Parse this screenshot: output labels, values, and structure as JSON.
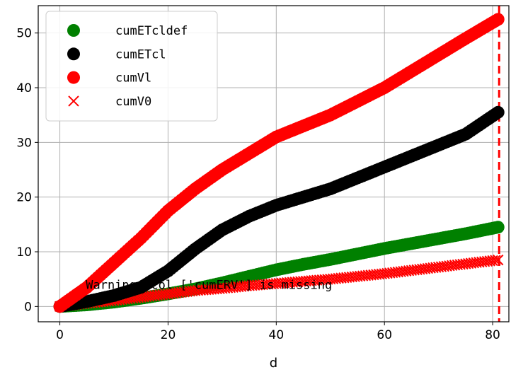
{
  "chart_data": {
    "type": "scatter",
    "xlabel": "d",
    "ylabel": "",
    "xlim": [
      -4,
      83
    ],
    "ylim": [
      -2.8,
      55
    ],
    "xticks": [
      0,
      20,
      40,
      60,
      80
    ],
    "yticks": [
      0,
      10,
      20,
      30,
      40,
      50
    ],
    "grid": true,
    "legend_position": "top-left",
    "annotation": "Warning: col ['cumERV'] is missing",
    "vline": {
      "x": 81.2,
      "color": "#ff0000",
      "style": "dashed"
    },
    "series": [
      {
        "name": "cumETcldef",
        "marker": "circle",
        "color": "#008000",
        "x": [
          0,
          5,
          10,
          15,
          20,
          25,
          30,
          35,
          40,
          45,
          50,
          55,
          60,
          65,
          70,
          75,
          81
        ],
        "y": [
          0,
          0.3,
          0.8,
          1.5,
          2.3,
          3.2,
          4.3,
          5.5,
          6.7,
          7.7,
          8.6,
          9.6,
          10.6,
          11.5,
          12.4,
          13.3,
          14.5
        ]
      },
      {
        "name": "cumETcl",
        "marker": "circle",
        "color": "#000000",
        "x": [
          0,
          5,
          10,
          15,
          20,
          25,
          30,
          35,
          40,
          45,
          50,
          55,
          60,
          65,
          70,
          75,
          81
        ],
        "y": [
          0,
          0.9,
          2.0,
          3.5,
          6.5,
          10.5,
          14.0,
          16.5,
          18.5,
          20.0,
          21.5,
          23.5,
          25.5,
          27.5,
          29.5,
          31.5,
          35.5
        ]
      },
      {
        "name": "cumVl",
        "marker": "circle",
        "color": "#ff0000",
        "x": [
          0,
          5,
          10,
          15,
          20,
          25,
          30,
          35,
          40,
          45,
          50,
          55,
          60,
          65,
          70,
          75,
          81
        ],
        "y": [
          0,
          3.5,
          8.0,
          12.5,
          17.5,
          21.5,
          25.0,
          28.0,
          31.0,
          33.0,
          35.0,
          37.5,
          40.0,
          43.0,
          46.0,
          49.0,
          52.5
        ]
      },
      {
        "name": "cumV0",
        "marker": "x",
        "color": "#ff0000",
        "x": [
          0,
          5,
          10,
          15,
          20,
          25,
          30,
          35,
          40,
          45,
          50,
          55,
          60,
          65,
          70,
          75,
          81
        ],
        "y": [
          0,
          0.6,
          1.1,
          1.7,
          2.3,
          2.9,
          3.3,
          3.8,
          4.2,
          4.6,
          5.0,
          5.5,
          6.0,
          6.6,
          7.2,
          7.8,
          8.5
        ]
      }
    ]
  }
}
